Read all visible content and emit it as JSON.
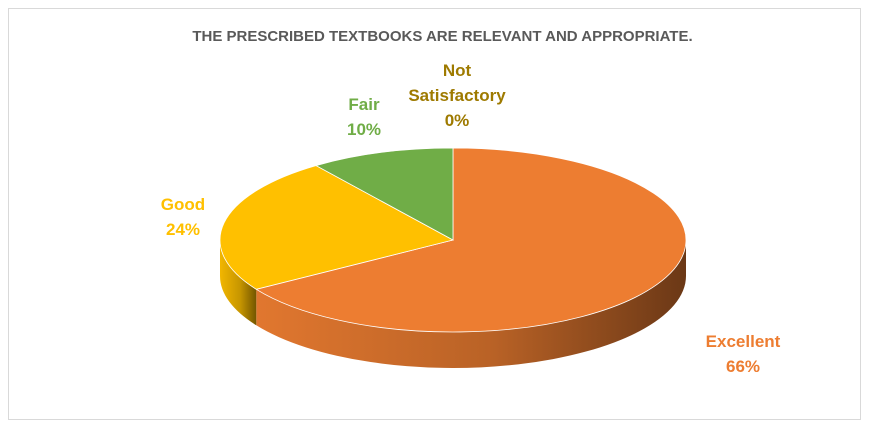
{
  "chart_data": {
    "type": "pie",
    "title": "THE PRESCRIBED TEXTBOOKS ARE RELEVANT AND APPROPRIATE.",
    "categories": [
      "Excellent",
      "Good",
      "Fair",
      "Not Satisfactory"
    ],
    "values": [
      66,
      24,
      10,
      0
    ],
    "value_labels": [
      "66%",
      "24%",
      "10%",
      "0%"
    ],
    "colors": [
      "#ED7D31",
      "#FFC000",
      "#70AD47",
      "#9E7A00"
    ],
    "style": "3d",
    "legend": "none"
  },
  "labels": {
    "excellent": {
      "name": "Excellent",
      "pct": "66%"
    },
    "good": {
      "name": "Good",
      "pct": "24%"
    },
    "fair": {
      "name": "Fair",
      "pct": "10%"
    },
    "not_satisfactory": {
      "name_line1": "Not",
      "name_line2": "Satisfactory",
      "pct": "0%"
    }
  }
}
